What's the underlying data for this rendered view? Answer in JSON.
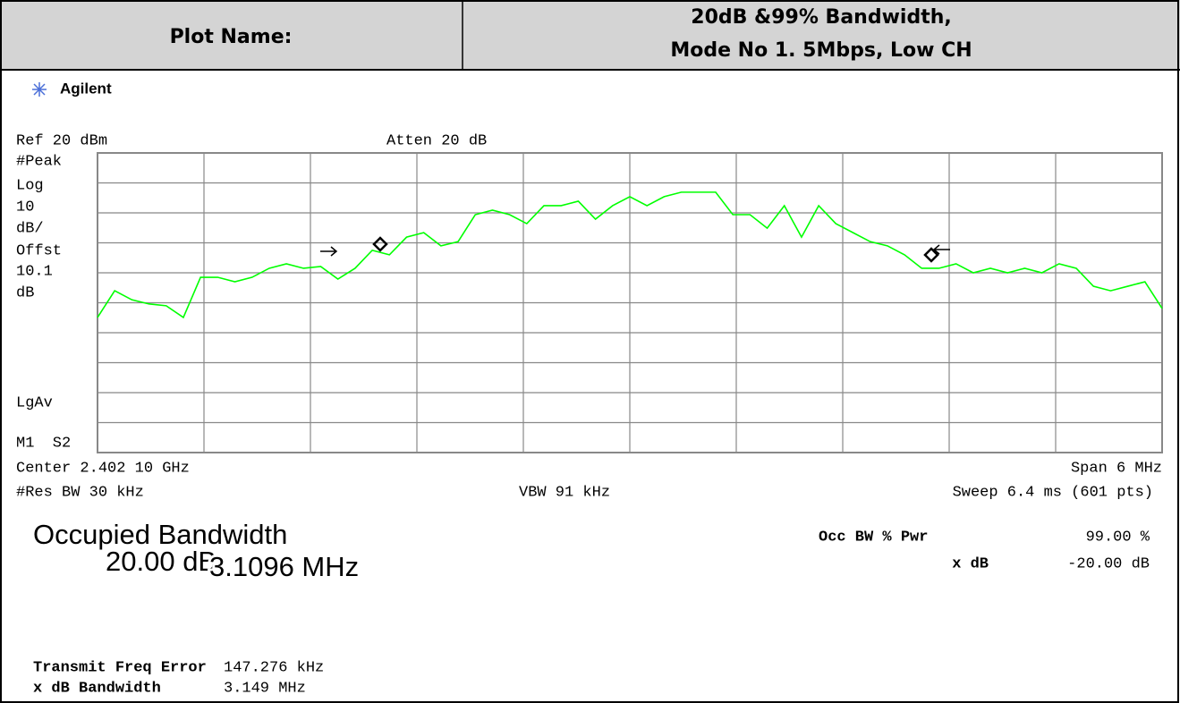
{
  "header": {
    "label": "Plot Name:",
    "title_line1": "20dB &99% Bandwidth,",
    "title_line2": "Mode No 1. 5Mbps, Low CH"
  },
  "brand": "Agilent",
  "screen": {
    "ref": "Ref 20 dBm",
    "atten": "Atten 20 dB",
    "left_labels": [
      "#Peak",
      "Log",
      "10",
      "dB/",
      "Offst",
      "10.1",
      "dB"
    ],
    "avg_label": "LgAv",
    "marker_label": "M1  S2",
    "center": "Center 2.402 10 GHz",
    "span": "Span 6 MHz",
    "res_bw": "#Res BW 30 kHz",
    "vbw": "VBW 91 kHz",
    "sweep": "Sweep 6.4 ms (601 pts)",
    "trace": {
      "ylim": [
        -80,
        20
      ],
      "color": "#00ff00",
      "values": [
        -34.9,
        -26.0,
        -29.0,
        -30.4,
        -31.0,
        -34.9,
        -21.5,
        -21.5,
        -23.0,
        -21.5,
        -18.5,
        -17.0,
        -18.5,
        -17.9,
        -22.1,
        -18.5,
        -12.5,
        -14.0,
        -8.1,
        -6.6,
        -11.0,
        -9.6,
        -0.6,
        0.9,
        -0.6,
        -3.6,
        2.4,
        2.4,
        3.9,
        -2.1,
        2.4,
        5.4,
        2.4,
        5.4,
        6.9,
        6.9,
        6.9,
        -0.6,
        -0.6,
        -5.1,
        2.4,
        -8.1,
        2.4,
        -3.6,
        -6.6,
        -9.6,
        -11.0,
        -14.0,
        -18.5,
        -18.5,
        -17.0,
        -20.0,
        -18.5,
        -20.0,
        -18.5,
        -20.0,
        -17.0,
        -18.5,
        -24.5,
        -26.0,
        -24.5,
        -23.0,
        -31.9
      ]
    }
  },
  "results": {
    "title": "Occupied Bandwidth",
    "ref_ghost": "20.00 dB",
    "occ_bw": "3.1096 MHz",
    "occ_pwr_label": "Occ BW % Pwr",
    "occ_pwr": "99.00 %",
    "xdb_label": "x dB",
    "xdb": "-20.00 dB",
    "freq_error_label": "Transmit Freq Error",
    "freq_error": "147.276 kHz",
    "xdb_bw_label": "x dB Bandwidth",
    "xdb_bw": "3.149 MHz"
  }
}
